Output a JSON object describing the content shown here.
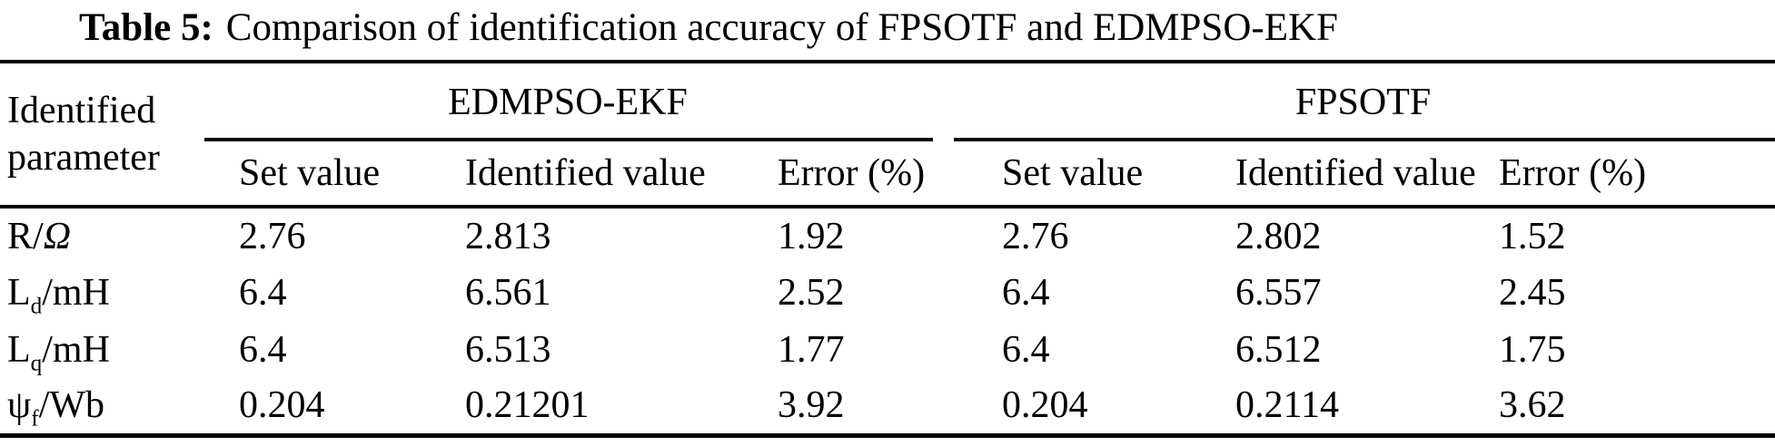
{
  "caption": {
    "tag": "Table 5:",
    "text": "Comparison of identification accuracy of FPSOTF and EDMPSO-EKF"
  },
  "table": {
    "header": {
      "param": "Identified parameter",
      "group1": "EDMPSO-EKF",
      "group2": "FPSOTF",
      "sub": [
        "Set value",
        "Identified value",
        "Error (%)"
      ]
    },
    "rows": [
      {
        "param": {
          "base": "R",
          "sub": "",
          "mid": "/",
          "italic": "Ω",
          "unit": ""
        },
        "values": [
          "2.76",
          "2.813",
          "1.92",
          "2.76",
          "2.802",
          "1.52"
        ]
      },
      {
        "param": {
          "base": "L",
          "sub": "d",
          "mid": "/",
          "italic": "",
          "unit": "mH"
        },
        "values": [
          "6.4",
          "6.561",
          "2.52",
          "6.4",
          "6.557",
          "2.45"
        ]
      },
      {
        "param": {
          "base": "L",
          "sub": "q",
          "mid": "/",
          "italic": "",
          "unit": "mH"
        },
        "values": [
          "6.4",
          "6.513",
          "1.77",
          "6.4",
          "6.512",
          "1.75"
        ]
      },
      {
        "param": {
          "base": "ψ",
          "sub": "f",
          "mid": "/",
          "italic": "",
          "unit": "Wb"
        },
        "values": [
          "0.204",
          "0.21201",
          "3.92",
          "0.204",
          "0.2114",
          "3.62"
        ]
      }
    ]
  },
  "colors": {
    "text": "#000000",
    "background": "#ffffff",
    "rule": "#000000"
  }
}
